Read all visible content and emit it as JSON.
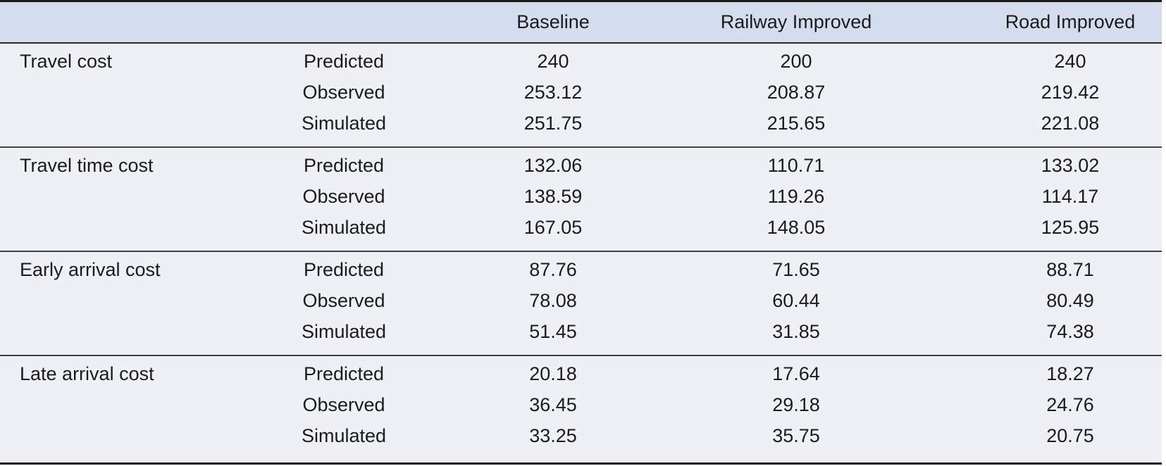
{
  "table": {
    "columns": [
      {
        "key": "category",
        "label": ""
      },
      {
        "key": "metric",
        "label": ""
      },
      {
        "key": "baseline",
        "label": "Baseline"
      },
      {
        "key": "railway-improved",
        "label": "Railway Improved"
      },
      {
        "key": "road-improved",
        "label": "Road Improved"
      }
    ],
    "groups": [
      {
        "label": "Travel cost",
        "rows": [
          {
            "metric": "Predicted",
            "values": [
              "240",
              "200",
              "240"
            ]
          },
          {
            "metric": "Observed",
            "values": [
              "253.12",
              "208.87",
              "219.42"
            ]
          },
          {
            "metric": "Simulated",
            "values": [
              "251.75",
              "215.65",
              "221.08"
            ]
          }
        ]
      },
      {
        "label": "Travel time cost",
        "rows": [
          {
            "metric": "Predicted",
            "values": [
              "132.06",
              "110.71",
              "133.02"
            ]
          },
          {
            "metric": "Observed",
            "values": [
              "138.59",
              "119.26",
              "114.17"
            ]
          },
          {
            "metric": "Simulated",
            "values": [
              "167.05",
              "148.05",
              "125.95"
            ]
          }
        ]
      },
      {
        "label": "Early arrival cost",
        "rows": [
          {
            "metric": "Predicted",
            "values": [
              "87.76",
              "71.65",
              "88.71"
            ]
          },
          {
            "metric": "Observed",
            "values": [
              "78.08",
              "60.44",
              "80.49"
            ]
          },
          {
            "metric": "Simulated",
            "values": [
              "51.45",
              "31.85",
              "74.38"
            ]
          }
        ]
      },
      {
        "label": "Late arrival cost",
        "rows": [
          {
            "metric": "Predicted",
            "values": [
              "20.18",
              "17.64",
              "18.27"
            ]
          },
          {
            "metric": "Observed",
            "values": [
              "36.45",
              "29.18",
              "24.76"
            ]
          },
          {
            "metric": "Simulated",
            "values": [
              "33.25",
              "35.75",
              "20.75"
            ]
          }
        ]
      }
    ],
    "colors": {
      "header_bg": "#d3dded",
      "body_bg": "#eef0f5",
      "rule_dark": "#1a1a1a",
      "rule_inner": "#404040",
      "text": "#1b1b1b"
    }
  },
  "chart_data": {
    "type": "table",
    "title": "",
    "column_headers": [
      "",
      "",
      "Baseline",
      "Railway Improved",
      "Road Improved"
    ],
    "row_groups": [
      "Travel cost",
      "Travel time cost",
      "Early arrival cost",
      "Late arrival cost"
    ],
    "row_metrics": [
      "Predicted",
      "Observed",
      "Simulated"
    ],
    "series": [
      {
        "name": "Baseline",
        "values": [
          240,
          253.12,
          251.75,
          132.06,
          138.59,
          167.05,
          87.76,
          78.08,
          51.45,
          20.18,
          36.45,
          33.25
        ]
      },
      {
        "name": "Railway Improved",
        "values": [
          200,
          208.87,
          215.65,
          110.71,
          119.26,
          148.05,
          71.65,
          60.44,
          31.85,
          17.64,
          29.18,
          35.75
        ]
      },
      {
        "name": "Road Improved",
        "values": [
          240,
          219.42,
          221.08,
          133.02,
          114.17,
          125.95,
          88.71,
          80.49,
          74.38,
          18.27,
          24.76,
          20.75
        ]
      }
    ]
  }
}
